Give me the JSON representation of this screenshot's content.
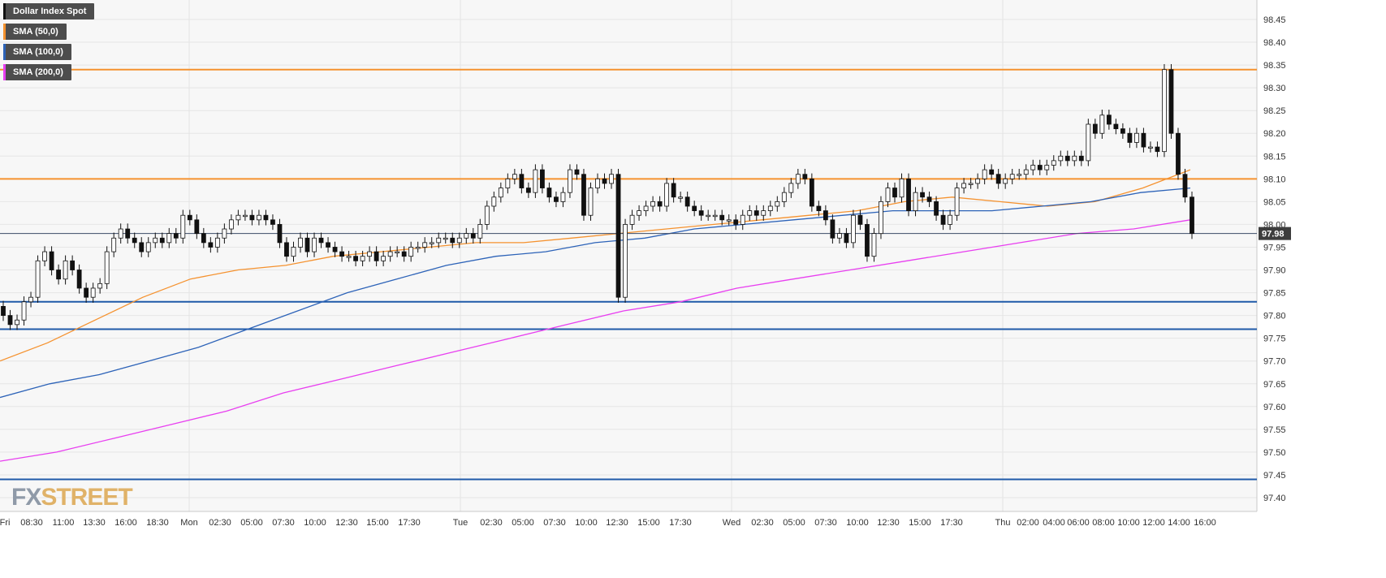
{
  "legend": {
    "items": [
      {
        "label": "Dollar Index Spot",
        "color": "#111111"
      },
      {
        "label": "SMA (50,0)",
        "color": "#f5922f"
      },
      {
        "label": "SMA (100,0)",
        "color": "#2d63b8"
      },
      {
        "label": "SMA (200,0)",
        "color": "#e83ff0"
      }
    ]
  },
  "logo": {
    "fx": "FX",
    "street": "STREET"
  },
  "price_label": "97.98",
  "chart_data": {
    "type": "candlestick",
    "title": "Dollar Index Spot",
    "ylim": [
      97.38,
      98.49
    ],
    "y_ticks": [
      "98.45",
      "98.40",
      "98.35",
      "98.30",
      "98.25",
      "98.20",
      "98.15",
      "98.10",
      "98.05",
      "98.00",
      "97.95",
      "97.90",
      "97.85",
      "97.80",
      "97.75",
      "97.70",
      "97.65",
      "97.60",
      "97.55",
      "97.50",
      "97.45",
      "97.40"
    ],
    "x_ticks": [
      "Fri",
      "08:30",
      "11:00",
      "13:30",
      "16:00",
      "18:30",
      "Mon",
      "02:30",
      "05:00",
      "07:30",
      "10:00",
      "12:30",
      "15:00",
      "17:30",
      "Tue",
      "02:30",
      "05:00",
      "07:30",
      "10:00",
      "12:30",
      "15:00",
      "17:30",
      "Wed",
      "02:30",
      "05:00",
      "07:30",
      "10:00",
      "12:30",
      "15:00",
      "17:30",
      "Thu",
      "02:00",
      "04:00",
      "06:00",
      "08:00",
      "10:00",
      "12:00",
      "14:00",
      "16:00"
    ],
    "grid": true,
    "current_price": 97.98,
    "horizontal_levels": [
      {
        "value": 98.34,
        "color": "#f5922f"
      },
      {
        "value": 98.1,
        "color": "#f5922f"
      },
      {
        "value": 97.83,
        "color": "#1f5aa8"
      },
      {
        "value": 97.77,
        "color": "#1f5aa8"
      },
      {
        "value": 97.44,
        "color": "#1f5aa8"
      }
    ],
    "candles_close": [
      97.8,
      97.78,
      97.79,
      97.83,
      97.84,
      97.92,
      97.94,
      97.9,
      97.88,
      97.92,
      97.9,
      97.86,
      97.84,
      97.86,
      97.87,
      97.94,
      97.97,
      97.99,
      97.97,
      97.96,
      97.94,
      97.96,
      97.97,
      97.96,
      97.98,
      97.97,
      98.02,
      98.01,
      97.98,
      97.96,
      97.95,
      97.97,
      97.99,
      98.01,
      98.02,
      98.02,
      98.01,
      98.02,
      98.01,
      98.0,
      97.96,
      97.93,
      97.95,
      97.97,
      97.94,
      97.97,
      97.96,
      97.95,
      97.94,
      97.93,
      97.93,
      97.92,
      97.93,
      97.94,
      97.92,
      97.93,
      97.94,
      97.94,
      97.93,
      97.95,
      97.95,
      97.96,
      97.96,
      97.97,
      97.97,
      97.96,
      97.97,
      97.98,
      97.97,
      98.0,
      98.04,
      98.06,
      98.08,
      98.1,
      98.11,
      98.08,
      98.07,
      98.12,
      98.08,
      98.06,
      98.05,
      98.07,
      98.12,
      98.11,
      98.02,
      98.08,
      98.1,
      98.09,
      98.11,
      97.84,
      98.0,
      98.02,
      98.03,
      98.04,
      98.05,
      98.04,
      98.09,
      98.06,
      98.06,
      98.04,
      98.03,
      98.02,
      98.02,
      98.02,
      98.01,
      98.01,
      98.0,
      98.02,
      98.03,
      98.02,
      98.03,
      98.04,
      98.05,
      98.07,
      98.09,
      98.11,
      98.1,
      98.04,
      98.03,
      98.01,
      97.97,
      97.98,
      97.96,
      98.02,
      98.0,
      97.93,
      97.98,
      98.05,
      98.08,
      98.06,
      98.1,
      98.03,
      98.07,
      98.06,
      98.05,
      98.02,
      98.0,
      98.02,
      98.08,
      98.09,
      98.09,
      98.1,
      98.12,
      98.11,
      98.09,
      98.1,
      98.11,
      98.11,
      98.12,
      98.13,
      98.12,
      98.13,
      98.14,
      98.15,
      98.14,
      98.15,
      98.14,
      98.22,
      98.2,
      98.24,
      98.22,
      98.21,
      98.2,
      98.18,
      98.2,
      98.17,
      98.17,
      98.16,
      98.34,
      98.2,
      98.11,
      98.06,
      97.98
    ],
    "series": [
      {
        "name": "SMA (50,0)",
        "values": [
          97.7,
          97.74,
          97.79,
          97.84,
          97.88,
          97.9,
          97.91,
          97.93,
          97.94,
          97.95,
          97.96,
          97.96,
          97.97,
          97.98,
          97.99,
          98.0,
          98.01,
          98.02,
          98.03,
          98.05,
          98.06,
          98.05,
          98.04,
          98.05,
          98.08,
          98.12
        ]
      },
      {
        "name": "SMA (100,0)",
        "values": [
          97.62,
          97.65,
          97.67,
          97.7,
          97.73,
          97.77,
          97.81,
          97.85,
          97.88,
          97.91,
          97.93,
          97.94,
          97.96,
          97.97,
          97.99,
          98.0,
          98.01,
          98.02,
          98.03,
          98.03,
          98.03,
          98.04,
          98.05,
          98.07,
          98.08
        ]
      },
      {
        "name": "SMA (200,0)",
        "values": [
          97.48,
          97.5,
          97.53,
          97.56,
          97.59,
          97.63,
          97.66,
          97.69,
          97.72,
          97.75,
          97.78,
          97.81,
          97.83,
          97.86,
          97.88,
          97.9,
          97.92,
          97.94,
          97.96,
          97.98,
          97.99,
          98.01
        ]
      }
    ]
  }
}
